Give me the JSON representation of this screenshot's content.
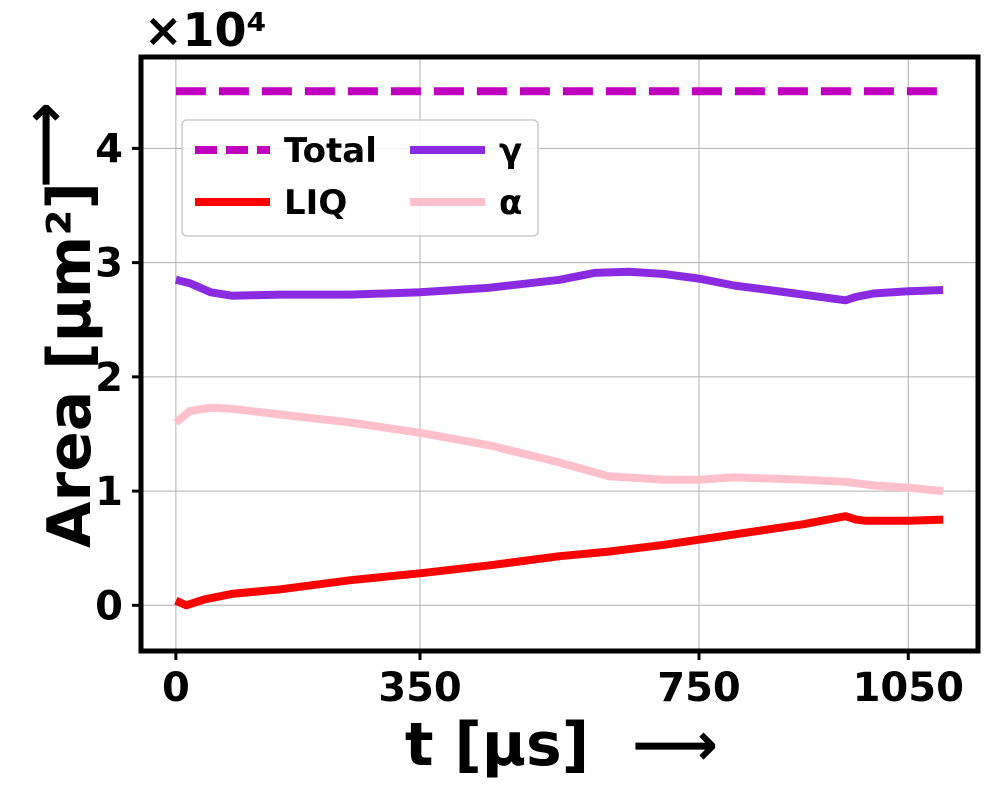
{
  "chart_data": {
    "type": "line",
    "xlabel": "t [µs]",
    "ylabel": "Area [µm²]",
    "axis_arrow": "⟶",
    "y_multiplier": "×10⁴",
    "xlim": [
      -50,
      1150
    ],
    "ylim": [
      -0.4,
      4.8
    ],
    "xticks": [
      0,
      350,
      750,
      1050
    ],
    "xtick_labels": [
      "0",
      "350",
      "750",
      "1050"
    ],
    "yticks": [
      0,
      1,
      2,
      3,
      4
    ],
    "ytick_labels": [
      "0",
      "1",
      "2",
      "3",
      "4"
    ],
    "grid": true,
    "legend_placement": "upper-left",
    "series": [
      {
        "name": "Total",
        "color": "#bf00bf",
        "style": "dashed",
        "x": [
          0,
          1100
        ],
        "y": [
          4.5,
          4.5
        ]
      },
      {
        "name": "LIQ",
        "color": "#ff0000",
        "style": "solid",
        "x": [
          0,
          15,
          40,
          80,
          150,
          250,
          350,
          450,
          550,
          620,
          700,
          800,
          900,
          960,
          975,
          990,
          1050,
          1100
        ],
        "y": [
          0.04,
          0.0,
          0.05,
          0.1,
          0.14,
          0.22,
          0.28,
          0.35,
          0.43,
          0.47,
          0.53,
          0.62,
          0.71,
          0.78,
          0.75,
          0.74,
          0.74,
          0.75
        ]
      },
      {
        "name": "γ",
        "color": "#8a2be2",
        "style": "solid",
        "x": [
          0,
          20,
          50,
          80,
          150,
          250,
          350,
          450,
          550,
          600,
          650,
          700,
          750,
          800,
          850,
          900,
          960,
          975,
          1000,
          1050,
          1100
        ],
        "y": [
          2.85,
          2.82,
          2.74,
          2.71,
          2.72,
          2.72,
          2.74,
          2.78,
          2.85,
          2.91,
          2.92,
          2.9,
          2.86,
          2.8,
          2.76,
          2.72,
          2.67,
          2.7,
          2.73,
          2.75,
          2.76
        ]
      },
      {
        "name": "α",
        "color": "#ffc0cb",
        "style": "solid",
        "x": [
          0,
          20,
          50,
          80,
          150,
          250,
          350,
          450,
          550,
          620,
          700,
          750,
          800,
          850,
          900,
          960,
          1000,
          1050,
          1100
        ],
        "y": [
          1.6,
          1.7,
          1.73,
          1.72,
          1.67,
          1.6,
          1.51,
          1.4,
          1.25,
          1.13,
          1.1,
          1.1,
          1.12,
          1.11,
          1.1,
          1.08,
          1.05,
          1.03,
          1.0
        ]
      }
    ]
  }
}
